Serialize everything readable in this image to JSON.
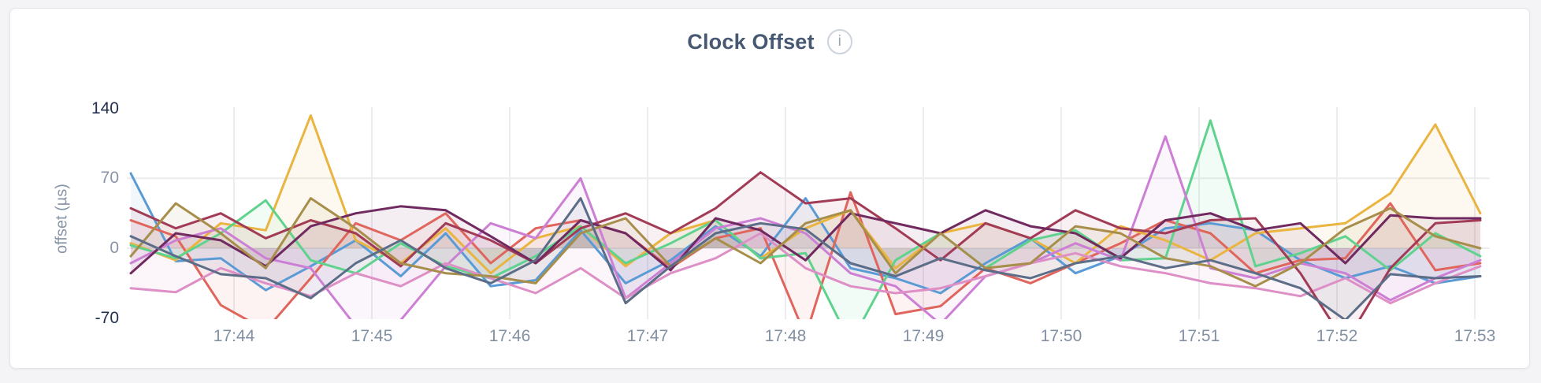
{
  "header": {
    "title": "Clock Offset",
    "info_icon_glyph": "i"
  },
  "chart_data": {
    "type": "line",
    "title": "Clock Offset",
    "xlabel": "",
    "ylabel": "offset (µs)",
    "ylim": [
      -71,
      169
    ],
    "y_ticks": [
      {
        "label": "140",
        "value": 140,
        "emphasis": true
      },
      {
        "label": "70",
        "value": 70,
        "emphasis": false
      },
      {
        "label": "0",
        "value": 0,
        "emphasis": false
      },
      {
        "label": "-70",
        "value": -70,
        "emphasis": true
      }
    ],
    "x_ticks": [
      "17:44",
      "17:45",
      "17:46",
      "17:47",
      "17:48",
      "17:49",
      "17:50",
      "17:51",
      "17:52",
      "17:53"
    ],
    "x_start_time_approx": "17:43:15",
    "x_step_seconds": 20,
    "grid": {
      "vertical": "every minute",
      "horizontal_at_values": [
        70,
        0
      ]
    },
    "legend": "none",
    "fill_opacity": 0.08,
    "line_width": 3,
    "series": [
      {
        "name": "series-1",
        "color": "#5B9BD5",
        "values": [
          75,
          -13,
          -10,
          -42,
          -18,
          8,
          -28,
          15,
          -38,
          -32,
          18,
          -35,
          -12,
          22,
          -8,
          50,
          -20,
          -30,
          -45,
          -15,
          10,
          -25,
          -8,
          20,
          25,
          18,
          -12,
          -30,
          -18,
          -35,
          -28
        ]
      },
      {
        "name": "series-2",
        "color": "#E0655C",
        "values": [
          28,
          12,
          -57,
          -82,
          -30,
          25,
          8,
          35,
          -15,
          20,
          28,
          15,
          -20,
          10,
          20,
          -88,
          56,
          -66,
          -58,
          -20,
          -35,
          -15,
          5,
          28,
          15,
          -25,
          -12,
          -10,
          45,
          -22,
          -15
        ]
      },
      {
        "name": "series-3",
        "color": "#E9B440",
        "values": [
          5,
          -12,
          25,
          18,
          133,
          8,
          -15,
          20,
          -25,
          10,
          22,
          -18,
          15,
          28,
          -10,
          20,
          38,
          -20,
          15,
          25,
          10,
          -15,
          22,
          8,
          -12,
          15,
          20,
          25,
          55,
          124,
          35
        ]
      },
      {
        "name": "series-4",
        "color": "#5FD38D",
        "values": [
          3,
          -10,
          15,
          48,
          -12,
          -25,
          5,
          -18,
          -30,
          -8,
          22,
          -15,
          5,
          28,
          -10,
          -5,
          -95,
          -12,
          15,
          -20,
          8,
          18,
          -12,
          -10,
          128,
          -18,
          -5,
          12,
          -22,
          15,
          -8
        ]
      },
      {
        "name": "series-5",
        "color": "#CC7FD4",
        "values": [
          -15,
          8,
          20,
          -10,
          -20,
          -78,
          -72,
          -18,
          25,
          10,
          70,
          -50,
          -15,
          20,
          30,
          15,
          -25,
          -38,
          -76,
          -28,
          -15,
          5,
          -12,
          112,
          -20,
          -30,
          -15,
          -25,
          -52,
          -30,
          -12
        ]
      },
      {
        "name": "series-6",
        "color": "#DD8FC6",
        "values": [
          -40,
          -44,
          -20,
          -35,
          -48,
          -25,
          -38,
          -15,
          -30,
          -45,
          -20,
          -50,
          -25,
          -10,
          15,
          -20,
          -38,
          -45,
          -40,
          -28,
          -15,
          -5,
          -18,
          -25,
          -35,
          -40,
          -48,
          -30,
          -55,
          -35,
          -18
        ]
      },
      {
        "name": "series-7",
        "color": "#A23B55",
        "values": [
          40,
          20,
          35,
          10,
          28,
          15,
          -18,
          25,
          8,
          -15,
          20,
          35,
          15,
          40,
          76,
          45,
          50,
          20,
          -12,
          25,
          10,
          38,
          20,
          15,
          28,
          30,
          -25,
          -95,
          -20,
          25,
          28
        ]
      },
      {
        "name": "series-8",
        "color": "#702A60",
        "values": [
          -25,
          15,
          8,
          -18,
          22,
          35,
          42,
          38,
          12,
          -15,
          28,
          15,
          -22,
          30,
          18,
          -12,
          35,
          25,
          15,
          38,
          22,
          15,
          -10,
          28,
          35,
          18,
          25,
          -15,
          33,
          30,
          30
        ]
      },
      {
        "name": "series-9",
        "color": "#A78E4B",
        "values": [
          -8,
          45,
          15,
          -20,
          50,
          20,
          -15,
          -25,
          -28,
          -35,
          15,
          30,
          -18,
          10,
          -15,
          25,
          38,
          -25,
          15,
          -20,
          -15,
          22,
          15,
          -10,
          -18,
          -38,
          -15,
          20,
          40,
          12,
          0
        ]
      },
      {
        "name": "series-10",
        "color": "#5C6D87",
        "values": [
          12,
          -8,
          -26,
          -30,
          -50,
          -15,
          8,
          -20,
          -35,
          -12,
          50,
          -55,
          -18,
          15,
          25,
          19,
          -15,
          -28,
          -10,
          -22,
          -30,
          -15,
          -8,
          -20,
          -12,
          -25,
          -40,
          -72,
          -26,
          -30,
          -28
        ]
      }
    ]
  },
  "styles": {
    "page_background": "#f4f4f6",
    "card_background": "#ffffff",
    "card_border": "#e2e4e8",
    "title_color": "#475872",
    "tick_muted_color": "#8895a7",
    "tick_emphasis_color": "#22304e",
    "gridline_color": "#ebecee"
  }
}
